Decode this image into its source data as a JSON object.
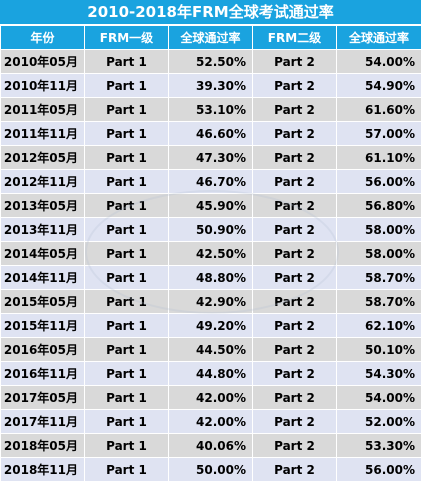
{
  "title": "2010-2018年FRM全球考试通过率",
  "headers": [
    "年份",
    "FRM一级",
    "全球通过率",
    "FRM二级",
    "全球通过率"
  ],
  "rows": [
    [
      "2010年05月",
      "Part 1",
      "52.50%",
      "Part 2",
      "54.00%"
    ],
    [
      "2010年11月",
      "Part 1",
      "39.30%",
      "Part 2",
      "54.90%"
    ],
    [
      "2011年05月",
      "Part 1",
      "53.10%",
      "Part 2",
      "61.60%"
    ],
    [
      "2011年11月",
      "Part 1",
      "46.60%",
      "Part 2",
      "57.00%"
    ],
    [
      "2012年05月",
      "Part 1",
      "47.30%",
      "Part 2",
      "61.10%"
    ],
    [
      "2012年11月",
      "Part 1",
      "46.70%",
      "Part 2",
      "56.00%"
    ],
    [
      "2013年05月",
      "Part 1",
      "45.90%",
      "Part 2",
      "56.80%"
    ],
    [
      "2013年11月",
      "Part 1",
      "50.90%",
      "Part 2",
      "58.00%"
    ],
    [
      "2014年05月",
      "Part 1",
      "42.50%",
      "Part 2",
      "58.00%"
    ],
    [
      "2014年11月",
      "Part 1",
      "48.80%",
      "Part 2",
      "58.70%"
    ],
    [
      "2015年05月",
      "Part 1",
      "42.90%",
      "Part 2",
      "58.70%"
    ],
    [
      "2015年11月",
      "Part 1",
      "49.20%",
      "Part 2",
      "62.10%"
    ],
    [
      "2016年05月",
      "Part 1",
      "44.50%",
      "Part 2",
      "50.10%"
    ],
    [
      "2016年11月",
      "Part 1",
      "44.80%",
      "Part 2",
      "54.30%"
    ],
    [
      "2017年05月",
      "Part 1",
      "42.00%",
      "Part 2",
      "54.00%"
    ],
    [
      "2017年11月",
      "Part 1",
      "42.00%",
      "Part 2",
      "52.00%"
    ],
    [
      "2018年05月",
      "Part 1",
      "40.06%",
      "Part 2",
      "53.30%"
    ],
    [
      "2018年11月",
      "Part 1",
      "50.00%",
      "Part 2",
      "56.00%"
    ]
  ],
  "colors": {
    "header_bg": "#1aa3df",
    "row_even": "#d9d9d9",
    "row_odd": "#dfe3f2"
  }
}
